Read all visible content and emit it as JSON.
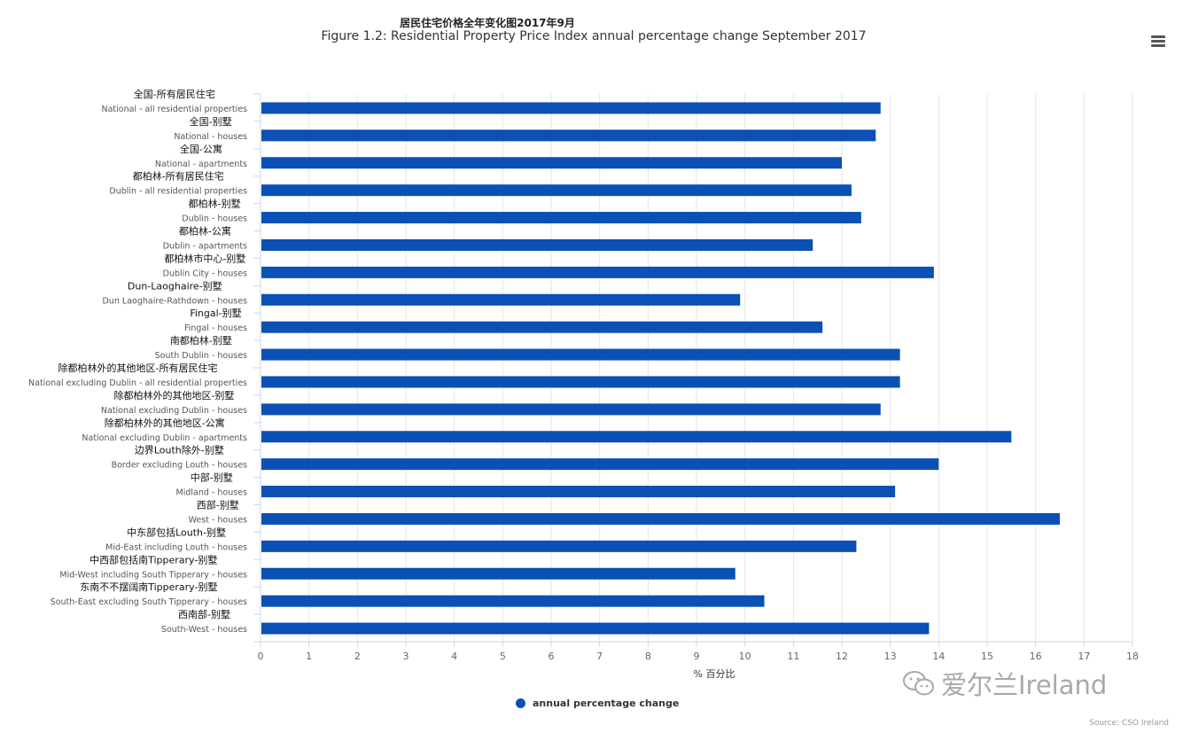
{
  "title_cn": "居民住宅价格全年变化图2017年9月",
  "title_en": "Figure 1.2: Residential Property Price Index annual percentage change September 2017",
  "menu": {
    "icon": "hamburger-menu-icon"
  },
  "legend": {
    "label": "annual percentage change",
    "color": "#0a50b5"
  },
  "watermark": {
    "icon": "wechat-icon",
    "text": "爱尔兰Ireland"
  },
  "credits": "Source: CSO Ireland",
  "chart_data": {
    "type": "bar",
    "orientation": "horizontal",
    "categories_cn": [
      "全国-所有居民住宅",
      "全国-别墅",
      "全国-公寓",
      "都柏林-所有居民住宅",
      "都柏林-别墅",
      "都柏林-公寓",
      "都柏林市中心-别墅",
      "Dun-Laoghaire-别墅",
      "Fingal-别墅",
      "南都柏林-别墅",
      "除都柏林外的其他地区-所有居民住宅",
      "除都柏林外的其他地区-别墅",
      "除都柏林外的其他地区-公寓",
      "边界Louth除外-别墅",
      "中部-别墅",
      "西部-别墅",
      "中东部包括Louth-别墅",
      "中西部包括南Tipperary-别墅",
      "东南不不摆阔南Tipperary-别墅",
      "西南部-别墅"
    ],
    "categories": [
      "National - all residential properties",
      "National - houses",
      "National - apartments",
      "Dublin - all residential properties",
      "Dublin - houses",
      "Dublin - apartments",
      "Dublin City - houses",
      "Dun Laoghaire-Rathdown - houses",
      "Fingal - houses",
      "South Dublin - houses",
      "National excluding Dublin - all residential properties",
      "National excluding Dublin - houses",
      "National excluding Dublin - apartments",
      "Border excluding Louth - houses",
      "Midland - houses",
      "West - houses",
      "Mid-East including Louth - houses",
      "Mid-West including South Tipperary - houses",
      "South-East excluding South Tipperary - houses",
      "South-West - houses"
    ],
    "series": [
      {
        "name": "annual percentage change",
        "values": [
          12.8,
          12.7,
          12.0,
          12.2,
          12.4,
          11.4,
          13.9,
          9.9,
          11.6,
          13.2,
          13.2,
          12.8,
          15.5,
          14.0,
          13.1,
          16.5,
          12.3,
          9.8,
          10.4,
          13.8
        ]
      }
    ],
    "xlabel": "% 百分比",
    "xlim": [
      0,
      18
    ],
    "xticks": [
      0,
      1,
      2,
      3,
      4,
      5,
      6,
      7,
      8,
      9,
      10,
      11,
      12,
      13,
      14,
      15,
      16,
      17,
      18
    ],
    "grid": true,
    "legend_position": "bottom"
  }
}
